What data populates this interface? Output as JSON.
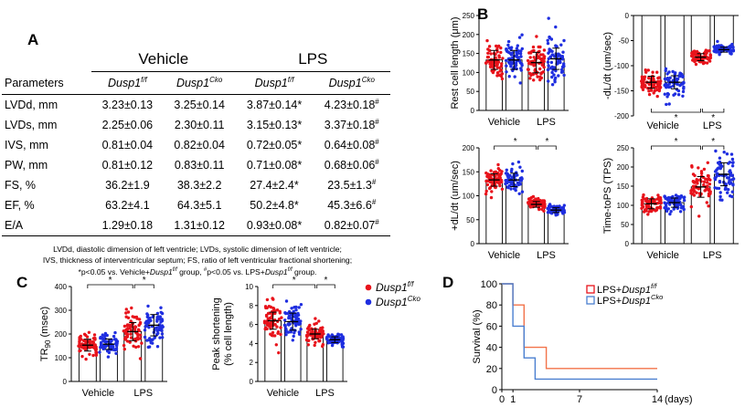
{
  "panel_labels": {
    "A": "A",
    "B": "B",
    "C": "C",
    "D": "D"
  },
  "table_a": {
    "group_headers": [
      "Vehicle",
      "LPS"
    ],
    "param_header": "Parameters",
    "geno_base": "Dusp1",
    "geno_sups": [
      "f/f",
      "Cko",
      "f/f",
      "Cko"
    ],
    "rows": [
      {
        "param": "LVDd, mm",
        "values": [
          "3.23±0.13",
          "3.25±0.14",
          "3.87±0.14*",
          "4.23±0.18"
        ],
        "marks": [
          "",
          "",
          "",
          "#"
        ]
      },
      {
        "param": "LVDs, mm",
        "values": [
          "2.25±0.06",
          "2.30±0.11",
          "3.15±0.13*",
          "3.37±0.18"
        ],
        "marks": [
          "",
          "",
          "",
          "#"
        ]
      },
      {
        "param": "IVS, mm",
        "values": [
          "0.81±0.04",
          "0.82±0.04",
          "0.72±0.05*",
          "0.64±0.08"
        ],
        "marks": [
          "",
          "",
          "",
          "#"
        ]
      },
      {
        "param": "PW, mm",
        "values": [
          "0.81±0.12",
          "0.83±0.11",
          "0.71±0.08*",
          "0.68±0.06"
        ],
        "marks": [
          "",
          "",
          "",
          "#"
        ]
      },
      {
        "param": "FS, %",
        "values": [
          "36.2±1.9",
          "38.3±2.2",
          "27.4±2.4*",
          "23.5±1.3"
        ],
        "marks": [
          "",
          "",
          "",
          "#"
        ]
      },
      {
        "param": "EF, %",
        "values": [
          "63.2±4.1",
          "64.3±5.1",
          "50.2±4.8*",
          "45.3±6.6"
        ],
        "marks": [
          "",
          "",
          "",
          "#"
        ]
      },
      {
        "param": "E/A",
        "values": [
          "1.29±0.18",
          "1.31±0.12",
          "0.93±0.08*",
          "0.82±0.07"
        ],
        "marks": [
          "",
          "",
          "",
          "#"
        ]
      }
    ],
    "notes": [
      "LVDd, diastolic dimension of left ventricle; LVDs, systolic dimension of left ventricle;",
      "IVS, thickness of interventricular septum;  FS, ratio of left ventricular fractional shortening;"
    ],
    "note3": {
      "a": "*p<0.05 vs. Vehicle+",
      "b": "Dusp1",
      "c": "f/f",
      "d": " group, ",
      "e": "#",
      "f": "p<0.05 vs. LPS+",
      "g": "Dusp1",
      "h": "f/f",
      "i": " group."
    }
  },
  "legend_c": {
    "items": [
      {
        "base": "Dusp1",
        "sup": "f/f",
        "color": "#e8131b"
      },
      {
        "base": "Dusp1",
        "sup": "Cko",
        "color": "#1f2ee0"
      }
    ]
  },
  "legend_d": {
    "items": [
      {
        "prefix": "LPS+",
        "base": "Dusp1",
        "sup": "f/f",
        "color": "#e8131b"
      },
      {
        "prefix": "LPS+",
        "base": "Dusp1",
        "sup": "Cko",
        "color": "#4a7fd0"
      }
    ]
  },
  "colors": {
    "red": "#e8131b",
    "blue": "#1f2ee0",
    "survival_red": "#f2734a",
    "survival_blue": "#4a7fd0"
  },
  "chart_data": [
    {
      "id": "b1",
      "type": "scatter",
      "ylabel": "Rest cell length (μm)",
      "ylim": [
        0,
        250
      ],
      "yticks": [
        0,
        50,
        100,
        150,
        200,
        250
      ],
      "xgroups": [
        "Vehicle",
        "LPS"
      ],
      "means": [
        133,
        133,
        126,
        136
      ],
      "sd": [
        25,
        25,
        27,
        28
      ],
      "sig": []
    },
    {
      "id": "b2",
      "type": "scatter",
      "ylabel": "-dL/dt (um/sec)",
      "ylim": [
        -200,
        0
      ],
      "yticks": [
        0,
        -50,
        -100,
        -150,
        -200
      ],
      "xgroups": [
        "Vehicle",
        "LPS"
      ],
      "means": [
        -133,
        -133,
        -83,
        -68
      ],
      "sd": [
        12,
        13,
        7,
        5
      ],
      "sig": [
        "*",
        "*"
      ],
      "inverted": true
    },
    {
      "id": "b3",
      "type": "scatter",
      "ylabel": "+dL/dt (um/sec)",
      "ylim": [
        0,
        200
      ],
      "yticks": [
        0,
        50,
        100,
        150,
        200
      ],
      "xgroups": [
        "Vehicle",
        "LPS"
      ],
      "means": [
        133,
        133,
        82,
        70
      ],
      "sd": [
        13,
        14,
        6,
        5
      ],
      "sig": [
        "*",
        "*"
      ]
    },
    {
      "id": "b4",
      "type": "scatter",
      "ylabel": "Time-toPS (TPS)",
      "ylim": [
        0,
        250
      ],
      "yticks": [
        0,
        50,
        100,
        150,
        200,
        250
      ],
      "xgroups": [
        "Vehicle",
        "LPS"
      ],
      "means": [
        104,
        107,
        148,
        181
      ],
      "sd": [
        13,
        12,
        27,
        30
      ],
      "sig": [
        "*",
        "*"
      ]
    },
    {
      "id": "c1",
      "type": "scatter",
      "ylabel": "TR90 (msec)",
      "ylabel_base": "TR",
      "ylabel_sub": "90",
      "ylabel_rest": " (msec)",
      "ylim": [
        0,
        400
      ],
      "yticks": [
        0,
        100,
        200,
        300,
        400
      ],
      "xgroups": [
        "Vehicle",
        "LPS"
      ],
      "means": [
        153,
        157,
        210,
        237
      ],
      "sd": [
        25,
        22,
        38,
        45
      ],
      "sig": [
        "*",
        "*"
      ]
    },
    {
      "id": "c2",
      "type": "scatter",
      "ylabel": "Peak shortening",
      "ylabel2": "(% cell length)",
      "ylim": [
        0,
        10
      ],
      "yticks": [
        0,
        2,
        4,
        6,
        8,
        10
      ],
      "xgroups": [
        "Vehicle",
        "LPS"
      ],
      "means": [
        6.4,
        6.3,
        5.0,
        4.4
      ],
      "sd": [
        0.9,
        0.9,
        0.5,
        0.3
      ],
      "sig": [
        "*",
        "*"
      ]
    },
    {
      "id": "d",
      "type": "line",
      "ylabel": "Survival (%)",
      "xlabel_suffix": "(days)",
      "xlim": [
        0,
        14
      ],
      "xticks": [
        0,
        1,
        7,
        14
      ],
      "ylim": [
        0,
        100
      ],
      "yticks": [
        0,
        20,
        40,
        60,
        80,
        100
      ],
      "series": [
        {
          "name": "LPS+Dusp1 f/f",
          "steps": [
            [
              0,
              100
            ],
            [
              1,
              100
            ],
            [
              1,
              80
            ],
            [
              2,
              80
            ],
            [
              2,
              40
            ],
            [
              4,
              40
            ],
            [
              4,
              20
            ],
            [
              14,
              20
            ]
          ]
        },
        {
          "name": "LPS+Dusp1 Cko",
          "steps": [
            [
              0,
              100
            ],
            [
              1,
              100
            ],
            [
              1,
              60
            ],
            [
              2,
              60
            ],
            [
              2,
              30
            ],
            [
              3,
              30
            ],
            [
              3,
              10
            ],
            [
              14,
              10
            ]
          ]
        }
      ]
    }
  ]
}
